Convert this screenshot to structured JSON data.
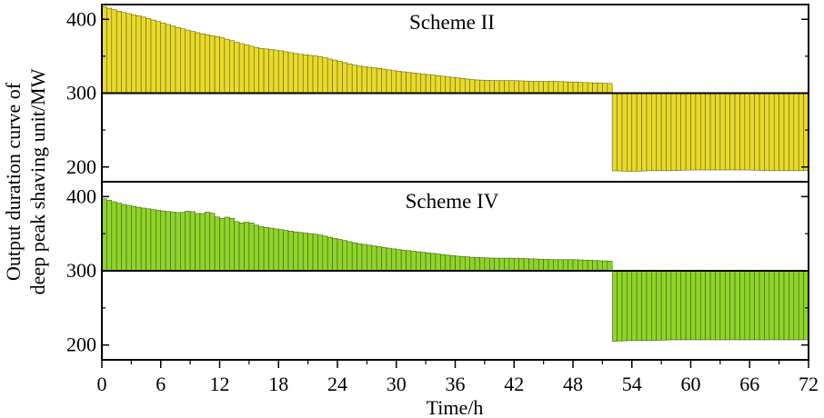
{
  "chart_data": [
    {
      "type": "bar",
      "title": "Scheme II",
      "baseline": 300,
      "ylim": [
        180,
        420
      ],
      "yticks": [
        200,
        300,
        400
      ],
      "xlim": [
        0,
        72
      ],
      "bar_color": "#e8da2a",
      "x_hours": [
        0,
        2,
        4,
        6,
        8,
        10,
        12,
        14,
        16,
        18,
        20,
        22,
        24,
        26,
        28,
        30,
        32,
        34,
        36,
        38,
        40,
        42,
        44,
        46,
        48,
        50,
        51.8,
        52,
        54,
        56,
        58,
        60,
        62,
        64,
        66,
        68,
        70,
        72
      ],
      "values": [
        418,
        410,
        404,
        396,
        388,
        381,
        376,
        368,
        361,
        358,
        353,
        350,
        344,
        337,
        334,
        330,
        327,
        324,
        321,
        318,
        317,
        317,
        316,
        316,
        315,
        314,
        313,
        195,
        194,
        195,
        195,
        196,
        196,
        196,
        196,
        195,
        195,
        195
      ]
    },
    {
      "type": "bar",
      "title": "Scheme IV",
      "baseline": 300,
      "ylim": [
        180,
        420
      ],
      "yticks": [
        200,
        300,
        400
      ],
      "xlim": [
        0,
        72
      ],
      "bar_color": "#8fd42a",
      "x_hours": [
        0,
        2,
        4,
        6,
        8,
        9,
        10,
        11,
        12,
        13,
        14,
        15,
        16,
        18,
        20,
        22,
        24,
        26,
        28,
        30,
        32,
        34,
        36,
        38,
        40,
        42,
        44,
        46,
        48,
        50,
        51.8,
        52,
        54,
        56,
        58,
        60,
        62,
        64,
        66,
        68,
        70,
        72
      ],
      "values": [
        398,
        390,
        385,
        381,
        378,
        381,
        376,
        380,
        370,
        373,
        364,
        366,
        360,
        356,
        352,
        349,
        343,
        337,
        333,
        329,
        326,
        323,
        320,
        318,
        317,
        317,
        316,
        315,
        315,
        314,
        313,
        205,
        206,
        206,
        207,
        207,
        207,
        207,
        207,
        207,
        207,
        207
      ]
    }
  ],
  "x_axis": {
    "label": "Time/h",
    "ticks": [
      "0",
      "6",
      "12",
      "18",
      "24",
      "30",
      "36",
      "42",
      "48",
      "54",
      "60",
      "66",
      "72"
    ]
  },
  "y_axis": {
    "label_line1": "Output duration curve of",
    "label_line2": "deep peak shaving unit/MW"
  }
}
